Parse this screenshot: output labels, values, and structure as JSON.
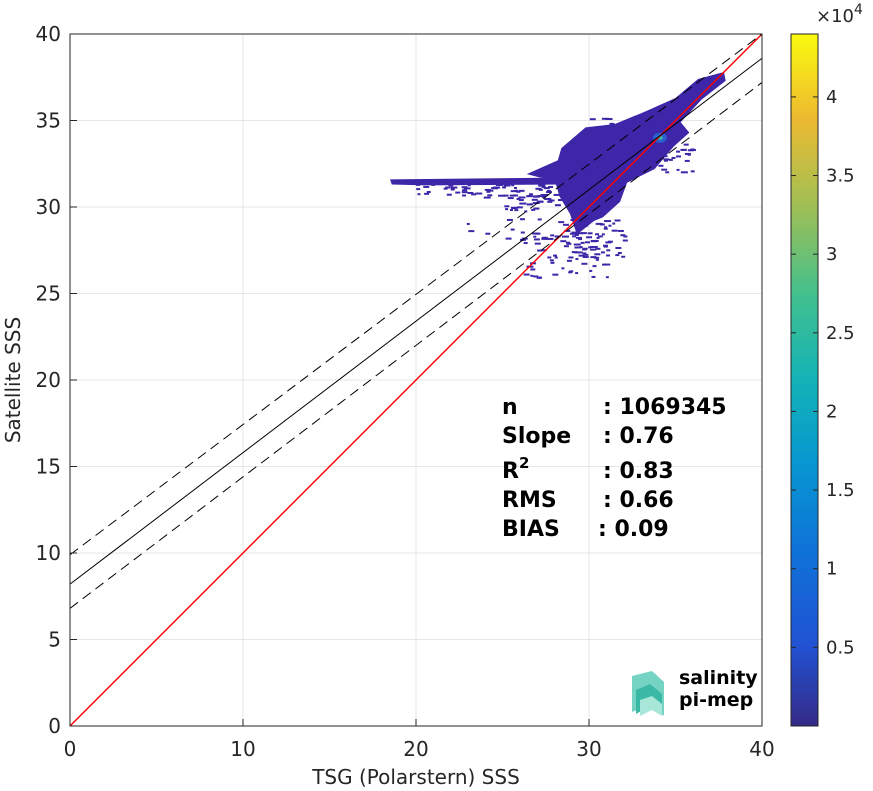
{
  "chart_data": {
    "type": "heatmap",
    "xlabel": "TSG (Polarstern) SSS",
    "ylabel": "Satellite SSS",
    "xlim": [
      0,
      40
    ],
    "ylim": [
      0,
      40
    ],
    "xticks": [
      "0",
      "10",
      "20",
      "30",
      "40"
    ],
    "yticks": [
      "0",
      "5",
      "10",
      "15",
      "20",
      "25",
      "30",
      "35",
      "40"
    ],
    "grid": true,
    "colormap": "parula",
    "colorbar": {
      "scale_label": "×10",
      "scale_exponent": "4",
      "range": [
        0,
        4.4
      ],
      "ticks": [
        "0.5",
        "1",
        "1.5",
        "2",
        "2.5",
        "3",
        "3.5",
        "4"
      ]
    },
    "lines": [
      {
        "role": "identity",
        "color": "#ff0000",
        "style": "solid",
        "points": [
          [
            0,
            0
          ],
          [
            40,
            40
          ]
        ]
      },
      {
        "role": "fit",
        "color": "#000000",
        "style": "solid",
        "points": [
          [
            0,
            8.2
          ],
          [
            40,
            38.6
          ]
        ]
      },
      {
        "role": "fit-upper",
        "color": "#000000",
        "style": "dashed",
        "points": [
          [
            0,
            9.9
          ],
          [
            40,
            40.0
          ]
        ]
      },
      {
        "role": "fit-lower",
        "color": "#000000",
        "style": "dashed",
        "points": [
          [
            0,
            6.8
          ],
          [
            40,
            37.2
          ]
        ]
      }
    ],
    "density_peak": [
      34.1,
      34.0
    ],
    "stats": [
      {
        "key": "n",
        "sup": "",
        "value": ": 1069345",
        "value_offset": 0
      },
      {
        "key": "Slope",
        "sup": "",
        "value": ": 0.76",
        "value_offset": 0
      },
      {
        "key": "R",
        "sup": "2",
        "value": ": 0.83",
        "value_offset": 0
      },
      {
        "key": "RMS",
        "sup": "",
        "value": ": 0.66",
        "value_offset": 0
      },
      {
        "key": "BIAS",
        "sup": "",
        "value": ": 0.09",
        "value_offset": -5
      }
    ]
  },
  "logo": {
    "line1": "salinity",
    "line2": "pi-mep",
    "color1": "#2ab0a0",
    "color2": "#1d7f7a"
  },
  "colors": {
    "density_low": "#3e26a8",
    "identity_line": "#ff0000",
    "grid": "#e6e6e6"
  }
}
